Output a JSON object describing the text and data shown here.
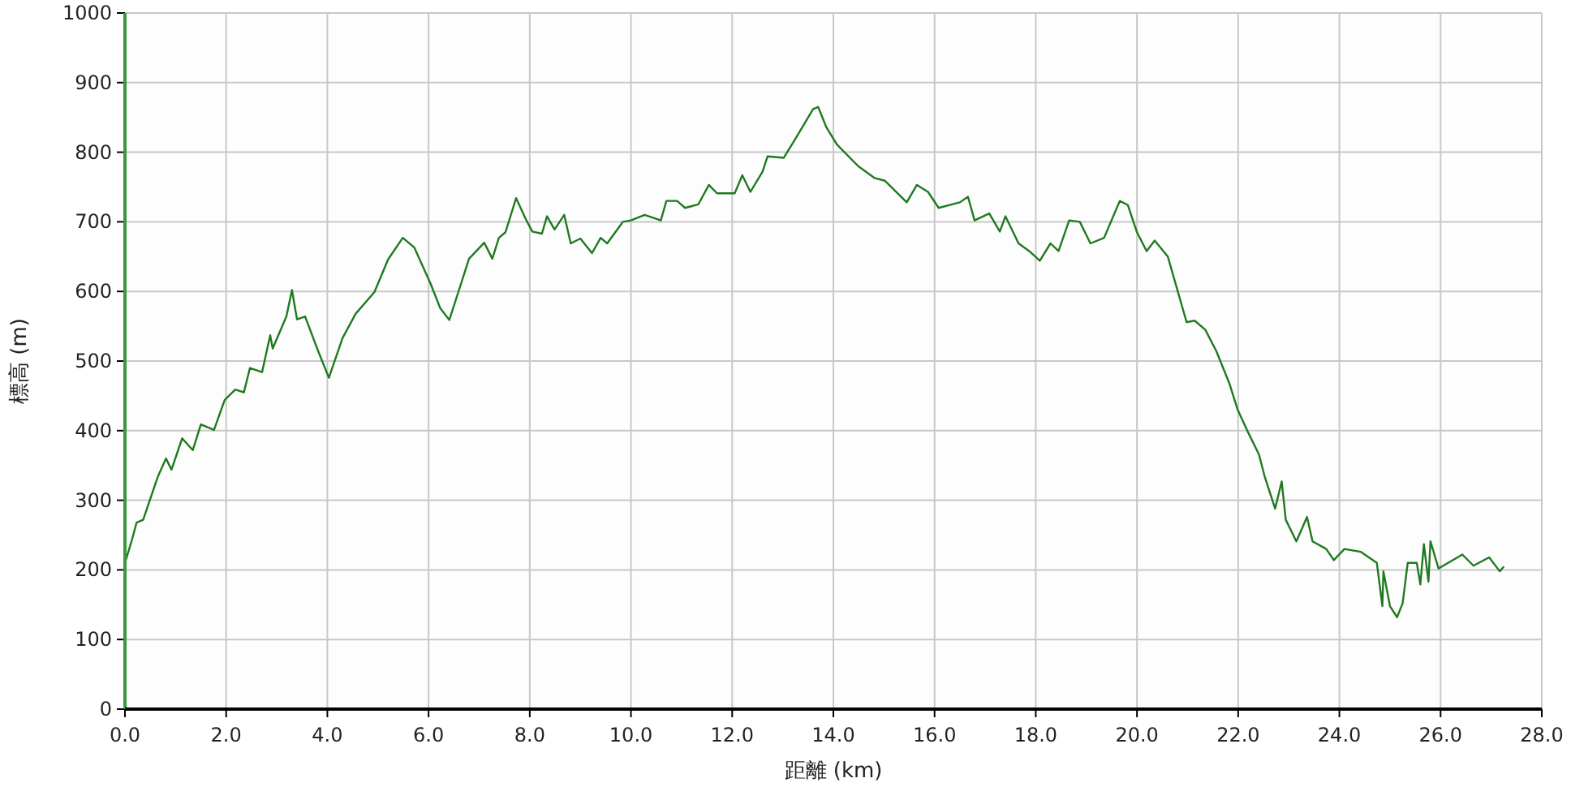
{
  "chart_data": {
    "type": "line",
    "xlabel": "距離 (km)",
    "ylabel": "標高 (m)",
    "xlim": [
      0,
      28
    ],
    "ylim": [
      0,
      1000
    ],
    "xticks": [
      {
        "value": 0,
        "label": "0.0"
      },
      {
        "value": 2,
        "label": "2.0"
      },
      {
        "value": 4,
        "label": "4.0"
      },
      {
        "value": 6,
        "label": "6.0"
      },
      {
        "value": 8,
        "label": "8.0"
      },
      {
        "value": 10,
        "label": "10.0"
      },
      {
        "value": 12,
        "label": "12.0"
      },
      {
        "value": 14,
        "label": "14.0"
      },
      {
        "value": 16,
        "label": "16.0"
      },
      {
        "value": 18,
        "label": "18.0"
      },
      {
        "value": 20,
        "label": "20.0"
      },
      {
        "value": 22,
        "label": "22.0"
      },
      {
        "value": 24,
        "label": "24.0"
      },
      {
        "value": 26,
        "label": "26.0"
      },
      {
        "value": 28,
        "label": "28.0"
      }
    ],
    "yticks": [
      0,
      100,
      200,
      300,
      400,
      500,
      600,
      700,
      800,
      900,
      1000
    ],
    "grid": true,
    "marker": "none",
    "line_style": "solid",
    "series": [
      {
        "color": "#1f7a1f",
        "x": [
          0,
          0.13,
          0.23,
          0.36,
          0.65,
          0.81,
          0.92,
          1.13,
          1.34,
          1.5,
          1.76,
          1.97,
          2.18,
          2.35,
          2.47,
          2.71,
          2.87,
          2.92,
          3.19,
          3.3,
          3.4,
          3.56,
          3.82,
          4.03,
          4.3,
          4.56,
          4.93,
          5.2,
          5.49,
          5.72,
          6.04,
          6.23,
          6.41,
          6.57,
          6.8,
          7.1,
          7.26,
          7.39,
          7.52,
          7.73,
          7.92,
          8.05,
          8.24,
          8.34,
          8.49,
          8.68,
          8.81,
          9.0,
          9.23,
          9.4,
          9.53,
          9.84,
          10.0,
          10.27,
          10.59,
          10.7,
          10.91,
          11.07,
          11.33,
          11.54,
          11.7,
          12.05,
          12.2,
          12.36,
          12.6,
          12.7,
          13.02,
          13.23,
          13.6,
          13.7,
          13.86,
          14.07,
          14.49,
          14.81,
          15.02,
          15.45,
          15.65,
          15.87,
          16.08,
          16.5,
          16.66,
          16.79,
          17.08,
          17.29,
          17.4,
          17.66,
          17.87,
          18.08,
          18.29,
          18.45,
          18.66,
          18.87,
          19.08,
          19.35,
          19.66,
          19.82,
          20.0,
          20.19,
          20.35,
          20.61,
          20.98,
          21.14,
          21.35,
          21.57,
          21.83,
          21.99,
          22.2,
          22.41,
          22.52,
          22.73,
          22.86,
          22.94,
          23.15,
          23.36,
          23.47,
          23.74,
          23.89,
          24.1,
          24.42,
          24.74,
          24.85,
          24.87,
          25.0,
          25.14,
          25.25,
          25.35,
          25.53,
          25.6,
          25.67,
          25.76,
          25.8,
          25.96,
          26.43,
          26.65,
          26.96,
          27.17,
          27.24
        ],
        "values": [
          210,
          241,
          268,
          272,
          334,
          360,
          344,
          389,
          372,
          409,
          401,
          444,
          459,
          455,
          490,
          484,
          537,
          518,
          564,
          602,
          560,
          564,
          514,
          476,
          533,
          568,
          599,
          646,
          677,
          663,
          611,
          576,
          559,
          595,
          647,
          670,
          647,
          677,
          685,
          734,
          704,
          686,
          683,
          708,
          689,
          710,
          669,
          676,
          655,
          677,
          669,
          700,
          702,
          710,
          702,
          730,
          730,
          720,
          725,
          753,
          741,
          741,
          767,
          743,
          772,
          794,
          792,
          817,
          862,
          865,
          836,
          811,
          780,
          763,
          759,
          728,
          753,
          743,
          720,
          728,
          736,
          702,
          712,
          686,
          708,
          669,
          658,
          644,
          669,
          658,
          702,
          700,
          669,
          677,
          730,
          724,
          685,
          658,
          673,
          650,
          556,
          558,
          545,
          514,
          467,
          430,
          397,
          366,
          335,
          288,
          327,
          272,
          241,
          276,
          241,
          230,
          214,
          230,
          226,
          210,
          148,
          198,
          148,
          132,
          152,
          210,
          210,
          179,
          237,
          183,
          241,
          202,
          222,
          206,
          218,
          198,
          204
        ]
      }
    ]
  }
}
